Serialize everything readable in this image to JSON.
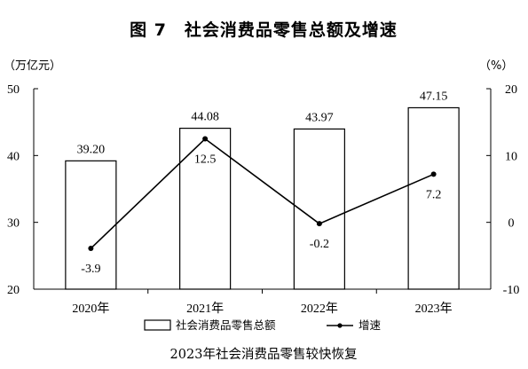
{
  "chart_data": {
    "type": "bar",
    "title": "图 7　社会消费品零售总额及增速",
    "left_axis_unit": "（万亿元）",
    "right_axis_unit": "（%）",
    "categories": [
      "2020年",
      "2021年",
      "2022年",
      "2023年"
    ],
    "ylim_left": [
      20,
      50
    ],
    "yticks_left": [
      20,
      30,
      40,
      50
    ],
    "ylim_right": [
      -10,
      20
    ],
    "yticks_right": [
      -10,
      0,
      10,
      20
    ],
    "series": [
      {
        "name": "社会消费品零售总额",
        "type": "bar",
        "axis": "left",
        "values": [
          39.2,
          44.08,
          43.97,
          47.15
        ],
        "labels": [
          "39.20",
          "44.08",
          "43.97",
          "47.15"
        ]
      },
      {
        "name": "增速",
        "type": "line",
        "axis": "right",
        "values": [
          -3.9,
          12.5,
          -0.2,
          7.2
        ],
        "labels": [
          "-3.9",
          "12.5",
          "-0.2",
          "7.2"
        ]
      }
    ],
    "legend_position": "bottom",
    "grid": false,
    "caption": "2023年社会消费品零售较快恢复"
  }
}
